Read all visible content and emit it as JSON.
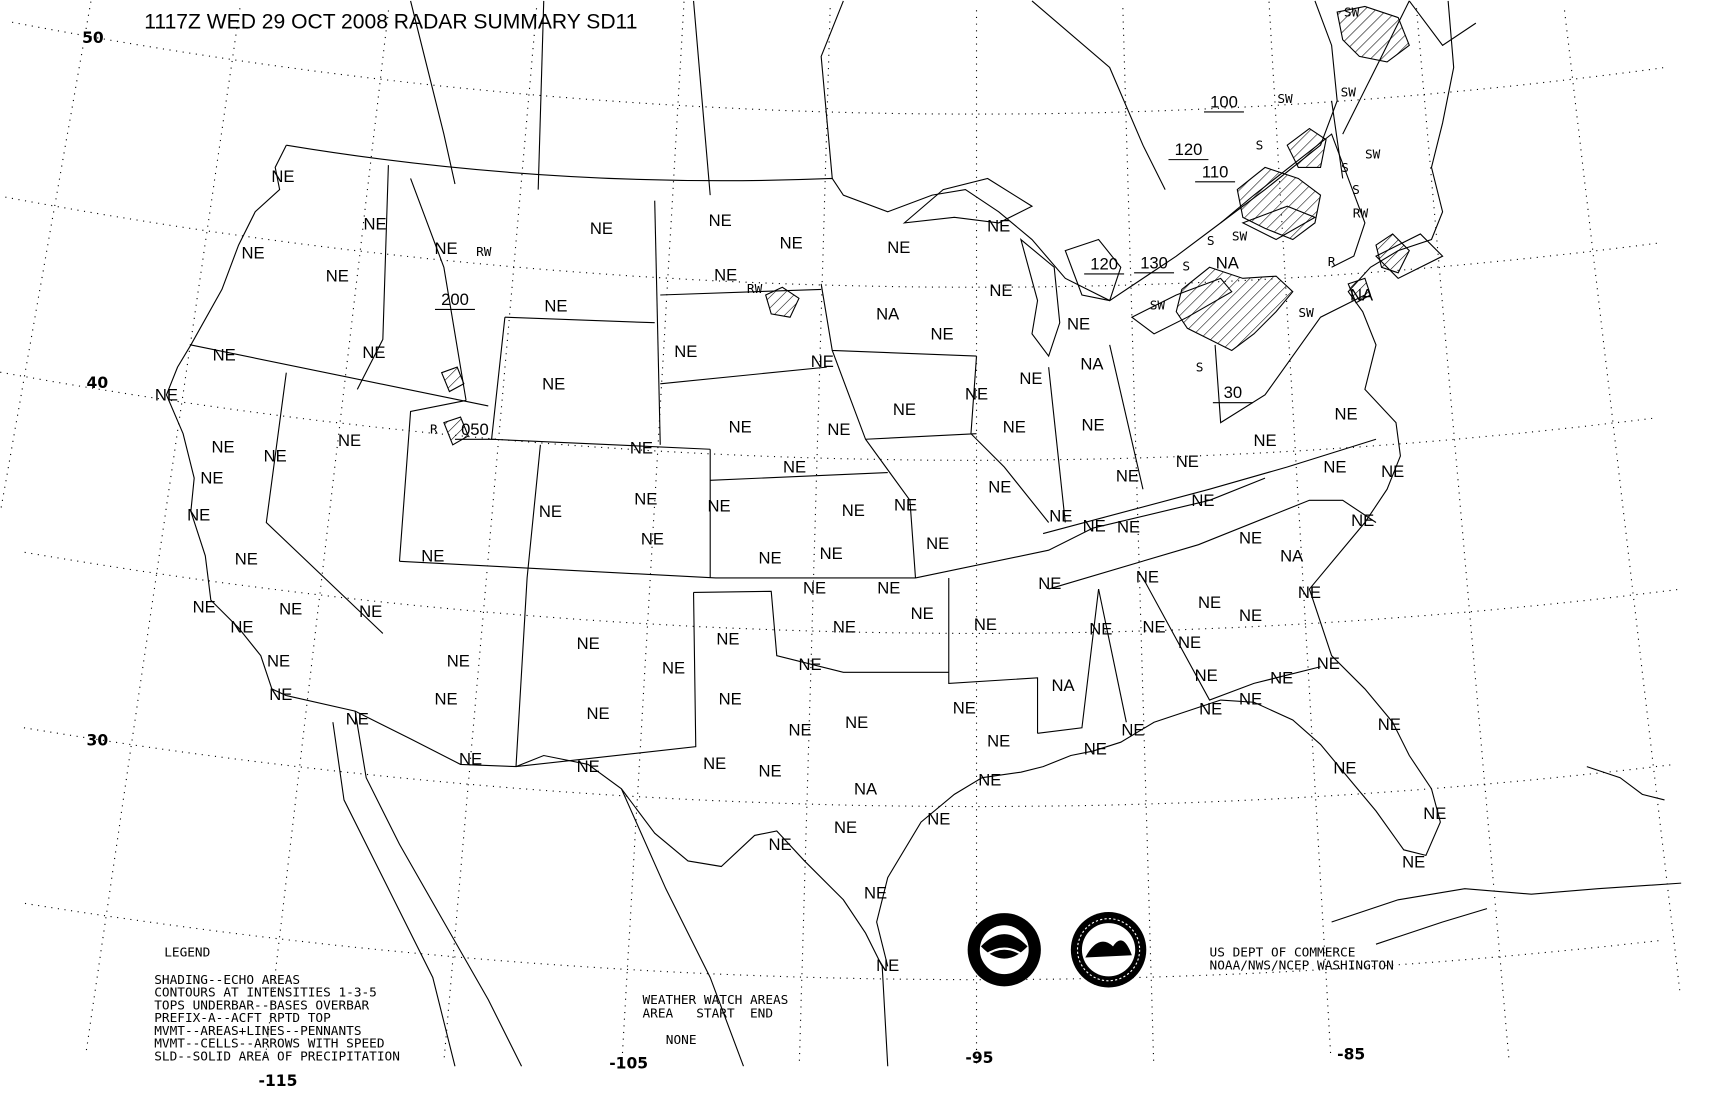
{
  "title": "1117Z WED 29 OCT 2008 RADAR SUMMARY SD11",
  "latitude_labels": [
    "50",
    "40",
    "30"
  ],
  "longitude_labels": [
    "-115",
    "-105",
    "-95",
    "-85"
  ],
  "legend": {
    "heading": "LEGEND",
    "lines": [
      "SHADING--ECHO AREAS",
      "CONTOURS AT INTENSITIES 1-3-5",
      "TOPS UNDERBAR--BASES OVERBAR",
      "PREFIX-A--ACFT RPTD TOP",
      "MVMT--AREAS+LINES--PENNANTS",
      "MVMT--CELLS--ARROWS WITH SPEED",
      "SLD--SOLID AREA OF PRECIPITATION"
    ]
  },
  "watch": {
    "heading": "WEATHER WATCH AREAS",
    "columns": "AREA   START  END",
    "value": "NONE"
  },
  "credit": {
    "line1": "US DEPT OF COMMERCE",
    "line2": "NOAA/NWS/NCEP WASHINGTON"
  },
  "logos": [
    "NOAA",
    "NATIONAL WEATHER SERVICE"
  ],
  "station_status": {
    "NE": "NE",
    "NA": "NA"
  },
  "echo_labels": [
    "SW",
    "SW",
    "SW",
    "SW",
    "SW",
    "SW",
    "SW",
    "S",
    "S",
    "S",
    "S",
    "S",
    "S",
    "RW",
    "RW",
    "RW",
    "R",
    "R"
  ],
  "tops": [
    "100",
    "120",
    "110",
    "120",
    "130",
    "200",
    "30",
    "050"
  ],
  "colors": {
    "background": "#ffffff",
    "ink": "#000000"
  }
}
